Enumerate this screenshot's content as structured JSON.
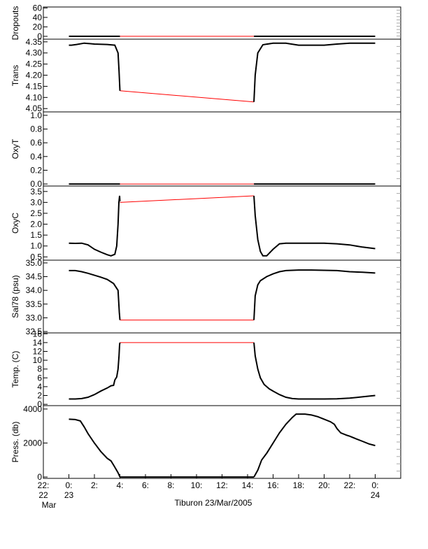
{
  "chart_data": {
    "type": "line",
    "xlabel": "Tiburon 23/Mar/2005",
    "xlim": [
      -2,
      26
    ],
    "x_ticks": [
      {
        "x": -2,
        "l1": "22:",
        "l2": "22",
        "l3": "Mar"
      },
      {
        "x": 0,
        "l1": "0:",
        "l2": "23",
        "l3": ""
      },
      {
        "x": 2,
        "l1": "2:",
        "l2": "",
        "l3": ""
      },
      {
        "x": 4,
        "l1": "4:",
        "l2": "",
        "l3": ""
      },
      {
        "x": 6,
        "l1": "6:",
        "l2": "",
        "l3": ""
      },
      {
        "x": 8,
        "l1": "8:",
        "l2": "",
        "l3": ""
      },
      {
        "x": 10,
        "l1": "10:",
        "l2": "",
        "l3": ""
      },
      {
        "x": 12,
        "l1": "12:",
        "l2": "",
        "l3": ""
      },
      {
        "x": 14,
        "l1": "14:",
        "l2": "",
        "l3": ""
      },
      {
        "x": 16,
        "l1": "16:",
        "l2": "",
        "l3": ""
      },
      {
        "x": 18,
        "l1": "18:",
        "l2": "",
        "l3": ""
      },
      {
        "x": 20,
        "l1": "20:",
        "l2": "",
        "l3": ""
      },
      {
        "x": 22,
        "l1": "22:",
        "l2": "",
        "l3": ""
      },
      {
        "x": 24,
        "l1": "0:",
        "l2": "24",
        "l3": ""
      }
    ],
    "colors": {
      "data": "#000000",
      "gap": "#ff0000",
      "axis": "#000000",
      "tick": "#aaaaaa"
    },
    "panels": [
      {
        "id": "dropouts",
        "ylabel": "Dropouts",
        "ylim": [
          -6,
          62
        ],
        "yticks": [
          {
            "v": 60,
            "t": "60"
          },
          {
            "v": 40,
            "t": "40"
          },
          {
            "v": 20,
            "t": "20"
          },
          {
            "v": 0,
            "t": "0"
          }
        ],
        "series": [
          {
            "name": "",
            "x": [
              0,
              4.0
            ],
            "y": [
              0,
              0
            ]
          },
          {
            "name": "",
            "x": [
              14.5,
              24.0
            ],
            "y": [
              0,
              0
            ]
          }
        ],
        "gap": {
          "x": [
            4.0,
            14.5
          ],
          "y": [
            0,
            0
          ]
        }
      },
      {
        "id": "trans",
        "ylabel": "Trans",
        "ylim": [
          4.035,
          4.362
        ],
        "yticks": [
          {
            "v": 4.35,
            "t": "4.35"
          },
          {
            "v": 4.3,
            "t": "4.30"
          },
          {
            "v": 4.25,
            "t": "4.25"
          },
          {
            "v": 4.2,
            "t": "4.20"
          },
          {
            "v": 4.15,
            "t": "4.15"
          },
          {
            "v": 4.1,
            "t": "4.10"
          },
          {
            "v": 4.05,
            "t": "4.05"
          }
        ],
        "series": [
          {
            "name": "",
            "x": [
              0,
              0.2,
              0.6,
              1.2,
              2.0,
              3.0,
              3.6,
              3.85,
              3.93,
              4.0
            ],
            "y": [
              4.335,
              4.335,
              4.338,
              4.344,
              4.34,
              4.338,
              4.335,
              4.3,
              4.22,
              4.13
            ]
          },
          {
            "name": "",
            "x": [
              14.5,
              14.6,
              14.8,
              15.2,
              16.0,
              17.0,
              18.0,
              19.0,
              20.0,
              21.0,
              22.0,
              23.0,
              24.0
            ],
            "y": [
              4.08,
              4.2,
              4.3,
              4.337,
              4.344,
              4.344,
              4.335,
              4.335,
              4.335,
              4.34,
              4.344,
              4.344,
              4.344
            ]
          }
        ],
        "gap": {
          "x": [
            4.0,
            14.5
          ],
          "y": [
            4.13,
            4.08
          ]
        }
      },
      {
        "id": "oxyt",
        "ylabel": "OxyT",
        "ylim": [
          -0.03,
          1.05
        ],
        "yticks": [
          {
            "v": 1.0,
            "t": "1.0"
          },
          {
            "v": 0.8,
            "t": "0.8"
          },
          {
            "v": 0.6,
            "t": "0.6"
          },
          {
            "v": 0.4,
            "t": "0.4"
          },
          {
            "v": 0.2,
            "t": "0.2"
          },
          {
            "v": 0.0,
            "t": "0.0"
          }
        ],
        "series": [
          {
            "name": "",
            "x": [
              0,
              4.0
            ],
            "y": [
              0,
              0
            ]
          },
          {
            "name": "",
            "x": [
              14.5,
              24.0
            ],
            "y": [
              0,
              0
            ]
          }
        ],
        "gap": {
          "x": [
            4.0,
            14.5
          ],
          "y": [
            0,
            0
          ]
        }
      },
      {
        "id": "oxyc",
        "ylabel": "OxyC",
        "ylim": [
          0.35,
          3.75
        ],
        "yticks": [
          {
            "v": 3.5,
            "t": "3.5"
          },
          {
            "v": 3.0,
            "t": "3.0"
          },
          {
            "v": 2.5,
            "t": "2.5"
          },
          {
            "v": 2.0,
            "t": "2.0"
          },
          {
            "v": 1.5,
            "t": "1.5"
          },
          {
            "v": 1.0,
            "t": "1.0"
          },
          {
            "v": 0.5,
            "t": "0.5"
          }
        ],
        "series": [
          {
            "name": "",
            "x": [
              0,
              0.5,
              1.0,
              1.5,
              2.0,
              2.5,
              3.0,
              3.3,
              3.6,
              3.75,
              3.85,
              3.92,
              3.97,
              4.0
            ],
            "y": [
              1.13,
              1.12,
              1.13,
              1.05,
              0.85,
              0.72,
              0.6,
              0.55,
              0.62,
              1.0,
              2.0,
              3.0,
              3.3,
              3.05
            ]
          },
          {
            "name": "",
            "x": [
              14.5,
              14.6,
              14.8,
              15.0,
              15.2,
              15.5,
              16.0,
              16.5,
              17.0,
              18.0,
              20.0,
              21.0,
              22.0,
              23.0,
              24.0
            ],
            "y": [
              3.3,
              2.4,
              1.3,
              0.75,
              0.55,
              0.55,
              0.85,
              1.1,
              1.13,
              1.13,
              1.13,
              1.1,
              1.05,
              0.95,
              0.88
            ]
          }
        ],
        "gap": {
          "x": [
            4.0,
            14.5
          ],
          "y": [
            3.0,
            3.3
          ]
        }
      },
      {
        "id": "sal",
        "ylabel": "Sal78 (psu)",
        "ylim": [
          32.45,
          35.1
        ],
        "yticks": [
          {
            "v": 35.0,
            "t": "35.0"
          },
          {
            "v": 34.5,
            "t": "34.5"
          },
          {
            "v": 34.0,
            "t": "34.0"
          },
          {
            "v": 33.5,
            "t": "33.5"
          },
          {
            "v": 33.0,
            "t": "33.0"
          },
          {
            "v": 32.5,
            "t": "32.5"
          }
        ],
        "series": [
          {
            "name": "",
            "x": [
              0,
              0.5,
              1.0,
              1.5,
              2.0,
              2.5,
              3.0,
              3.5,
              3.85,
              3.95,
              4.0
            ],
            "y": [
              34.72,
              34.72,
              34.68,
              34.62,
              34.55,
              34.48,
              34.4,
              34.25,
              34.0,
              33.2,
              32.92
            ]
          },
          {
            "name": "",
            "x": [
              14.5,
              14.6,
              14.8,
              15.0,
              15.5,
              16.0,
              16.5,
              17.0,
              18.0,
              19.0,
              20.0,
              21.0,
              22.0,
              23.0,
              24.0
            ],
            "y": [
              32.92,
              33.8,
              34.2,
              34.35,
              34.5,
              34.6,
              34.68,
              34.72,
              34.74,
              34.74,
              34.73,
              34.72,
              34.68,
              34.66,
              34.63
            ]
          }
        ],
        "gap": {
          "x": [
            4.0,
            14.5
          ],
          "y": [
            32.92,
            32.92
          ]
        }
      },
      {
        "id": "temp",
        "ylabel": "Temp. (C)",
        "ylim": [
          -0.3,
          16.2
        ],
        "yticks": [
          {
            "v": 16,
            "t": "16"
          },
          {
            "v": 14,
            "t": "14"
          },
          {
            "v": 12,
            "t": "12"
          },
          {
            "v": 10,
            "t": "10"
          },
          {
            "v": 8,
            "t": "8"
          },
          {
            "v": 6,
            "t": "6"
          },
          {
            "v": 4,
            "t": "4"
          },
          {
            "v": 2,
            "t": "2"
          },
          {
            "v": 0,
            "t": "0"
          }
        ],
        "series": [
          {
            "name": "",
            "x": [
              0,
              0.5,
              1.0,
              1.5,
              2.0,
              2.5,
              3.0,
              3.3,
              3.5,
              3.6,
              3.75,
              3.85,
              3.93,
              3.97,
              4.0
            ],
            "y": [
              1.2,
              1.2,
              1.3,
              1.6,
              2.2,
              3.0,
              3.7,
              4.2,
              4.3,
              5.5,
              6.2,
              8.0,
              11.0,
              13.5,
              14.0
            ]
          },
          {
            "name": "",
            "x": [
              14.5,
              14.6,
              14.8,
              15.0,
              15.3,
              15.7,
              16.0,
              16.5,
              17.0,
              17.5,
              18.0,
              19.0,
              20.0,
              21.0,
              22.0,
              23.0,
              24.0
            ],
            "y": [
              14.0,
              11.0,
              8.0,
              6.0,
              4.5,
              3.5,
              3.0,
              2.2,
              1.6,
              1.3,
              1.2,
              1.2,
              1.2,
              1.25,
              1.4,
              1.7,
              2.0
            ]
          }
        ],
        "gap": {
          "x": [
            4.0,
            14.5
          ],
          "y": [
            14.0,
            14.0
          ]
        }
      },
      {
        "id": "press",
        "ylabel": "Press. (db)",
        "ylim": [
          -80,
          4200
        ],
        "yticks": [
          {
            "v": 4000,
            "t": "4000"
          },
          {
            "v": 2000,
            "t": "2000"
          },
          {
            "v": 0,
            "t": "0"
          }
        ],
        "series": [
          {
            "name": "",
            "x": [
              0,
              0.5,
              0.9,
              1.2,
              1.5,
              2.0,
              2.5,
              3.0,
              3.3,
              3.5,
              3.7,
              3.85,
              4.0
            ],
            "y": [
              3400,
              3380,
              3300,
              2950,
              2550,
              2000,
              1500,
              1100,
              950,
              700,
              450,
              250,
              0
            ]
          },
          {
            "name": "",
            "x": [
              4.0,
              14.5
            ],
            "y": [
              0,
              0
            ]
          },
          {
            "name": "",
            "x": [
              14.5,
              14.8,
              15.1,
              15.5,
              16.0,
              16.5,
              17.0,
              17.5,
              17.8,
              18.0,
              18.5,
              19.0,
              19.5,
              20.0,
              20.5,
              20.8,
              21.0,
              21.3,
              21.8,
              22.0,
              22.5,
              23.0,
              23.5,
              24.0
            ],
            "y": [
              0,
              400,
              1000,
              1400,
              2000,
              2600,
              3100,
              3500,
              3700,
              3700,
              3700,
              3650,
              3550,
              3400,
              3250,
              3100,
              2850,
              2600,
              2450,
              2400,
              2250,
              2100,
              1950,
              1850
            ]
          }
        ],
        "gap": {
          "x": [],
          "y": []
        }
      }
    ]
  }
}
